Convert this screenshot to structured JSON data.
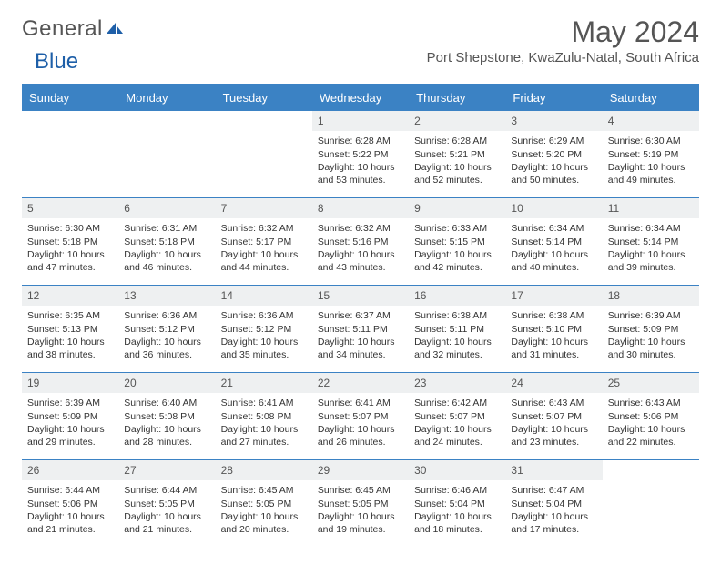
{
  "brand": {
    "part1": "General",
    "part2": "Blue",
    "color1": "#6b6b6b",
    "color2": "#1e5fa8"
  },
  "title": "May 2024",
  "location": "Port Shepstone, KwaZulu-Natal, South Africa",
  "colors": {
    "header_bg": "#3b82c4",
    "header_text": "#ffffff",
    "border": "#3b82c4",
    "daynum_bg": "#eef0f1",
    "text": "#333333",
    "muted": "#555555"
  },
  "dayHeaders": [
    "Sunday",
    "Monday",
    "Tuesday",
    "Wednesday",
    "Thursday",
    "Friday",
    "Saturday"
  ],
  "weeks": [
    [
      {
        "n": "",
        "empty": true
      },
      {
        "n": "",
        "empty": true
      },
      {
        "n": "",
        "empty": true
      },
      {
        "n": "1",
        "sunrise": "6:28 AM",
        "sunset": "5:22 PM",
        "daylight": "10 hours and 53 minutes."
      },
      {
        "n": "2",
        "sunrise": "6:28 AM",
        "sunset": "5:21 PM",
        "daylight": "10 hours and 52 minutes."
      },
      {
        "n": "3",
        "sunrise": "6:29 AM",
        "sunset": "5:20 PM",
        "daylight": "10 hours and 50 minutes."
      },
      {
        "n": "4",
        "sunrise": "6:30 AM",
        "sunset": "5:19 PM",
        "daylight": "10 hours and 49 minutes."
      }
    ],
    [
      {
        "n": "5",
        "sunrise": "6:30 AM",
        "sunset": "5:18 PM",
        "daylight": "10 hours and 47 minutes."
      },
      {
        "n": "6",
        "sunrise": "6:31 AM",
        "sunset": "5:18 PM",
        "daylight": "10 hours and 46 minutes."
      },
      {
        "n": "7",
        "sunrise": "6:32 AM",
        "sunset": "5:17 PM",
        "daylight": "10 hours and 44 minutes."
      },
      {
        "n": "8",
        "sunrise": "6:32 AM",
        "sunset": "5:16 PM",
        "daylight": "10 hours and 43 minutes."
      },
      {
        "n": "9",
        "sunrise": "6:33 AM",
        "sunset": "5:15 PM",
        "daylight": "10 hours and 42 minutes."
      },
      {
        "n": "10",
        "sunrise": "6:34 AM",
        "sunset": "5:14 PM",
        "daylight": "10 hours and 40 minutes."
      },
      {
        "n": "11",
        "sunrise": "6:34 AM",
        "sunset": "5:14 PM",
        "daylight": "10 hours and 39 minutes."
      }
    ],
    [
      {
        "n": "12",
        "sunrise": "6:35 AM",
        "sunset": "5:13 PM",
        "daylight": "10 hours and 38 minutes."
      },
      {
        "n": "13",
        "sunrise": "6:36 AM",
        "sunset": "5:12 PM",
        "daylight": "10 hours and 36 minutes."
      },
      {
        "n": "14",
        "sunrise": "6:36 AM",
        "sunset": "5:12 PM",
        "daylight": "10 hours and 35 minutes."
      },
      {
        "n": "15",
        "sunrise": "6:37 AM",
        "sunset": "5:11 PM",
        "daylight": "10 hours and 34 minutes."
      },
      {
        "n": "16",
        "sunrise": "6:38 AM",
        "sunset": "5:11 PM",
        "daylight": "10 hours and 32 minutes."
      },
      {
        "n": "17",
        "sunrise": "6:38 AM",
        "sunset": "5:10 PM",
        "daylight": "10 hours and 31 minutes."
      },
      {
        "n": "18",
        "sunrise": "6:39 AM",
        "sunset": "5:09 PM",
        "daylight": "10 hours and 30 minutes."
      }
    ],
    [
      {
        "n": "19",
        "sunrise": "6:39 AM",
        "sunset": "5:09 PM",
        "daylight": "10 hours and 29 minutes."
      },
      {
        "n": "20",
        "sunrise": "6:40 AM",
        "sunset": "5:08 PM",
        "daylight": "10 hours and 28 minutes."
      },
      {
        "n": "21",
        "sunrise": "6:41 AM",
        "sunset": "5:08 PM",
        "daylight": "10 hours and 27 minutes."
      },
      {
        "n": "22",
        "sunrise": "6:41 AM",
        "sunset": "5:07 PM",
        "daylight": "10 hours and 26 minutes."
      },
      {
        "n": "23",
        "sunrise": "6:42 AM",
        "sunset": "5:07 PM",
        "daylight": "10 hours and 24 minutes."
      },
      {
        "n": "24",
        "sunrise": "6:43 AM",
        "sunset": "5:07 PM",
        "daylight": "10 hours and 23 minutes."
      },
      {
        "n": "25",
        "sunrise": "6:43 AM",
        "sunset": "5:06 PM",
        "daylight": "10 hours and 22 minutes."
      }
    ],
    [
      {
        "n": "26",
        "sunrise": "6:44 AM",
        "sunset": "5:06 PM",
        "daylight": "10 hours and 21 minutes."
      },
      {
        "n": "27",
        "sunrise": "6:44 AM",
        "sunset": "5:05 PM",
        "daylight": "10 hours and 21 minutes."
      },
      {
        "n": "28",
        "sunrise": "6:45 AM",
        "sunset": "5:05 PM",
        "daylight": "10 hours and 20 minutes."
      },
      {
        "n": "29",
        "sunrise": "6:45 AM",
        "sunset": "5:05 PM",
        "daylight": "10 hours and 19 minutes."
      },
      {
        "n": "30",
        "sunrise": "6:46 AM",
        "sunset": "5:04 PM",
        "daylight": "10 hours and 18 minutes."
      },
      {
        "n": "31",
        "sunrise": "6:47 AM",
        "sunset": "5:04 PM",
        "daylight": "10 hours and 17 minutes."
      },
      {
        "n": "",
        "empty": true
      }
    ]
  ]
}
